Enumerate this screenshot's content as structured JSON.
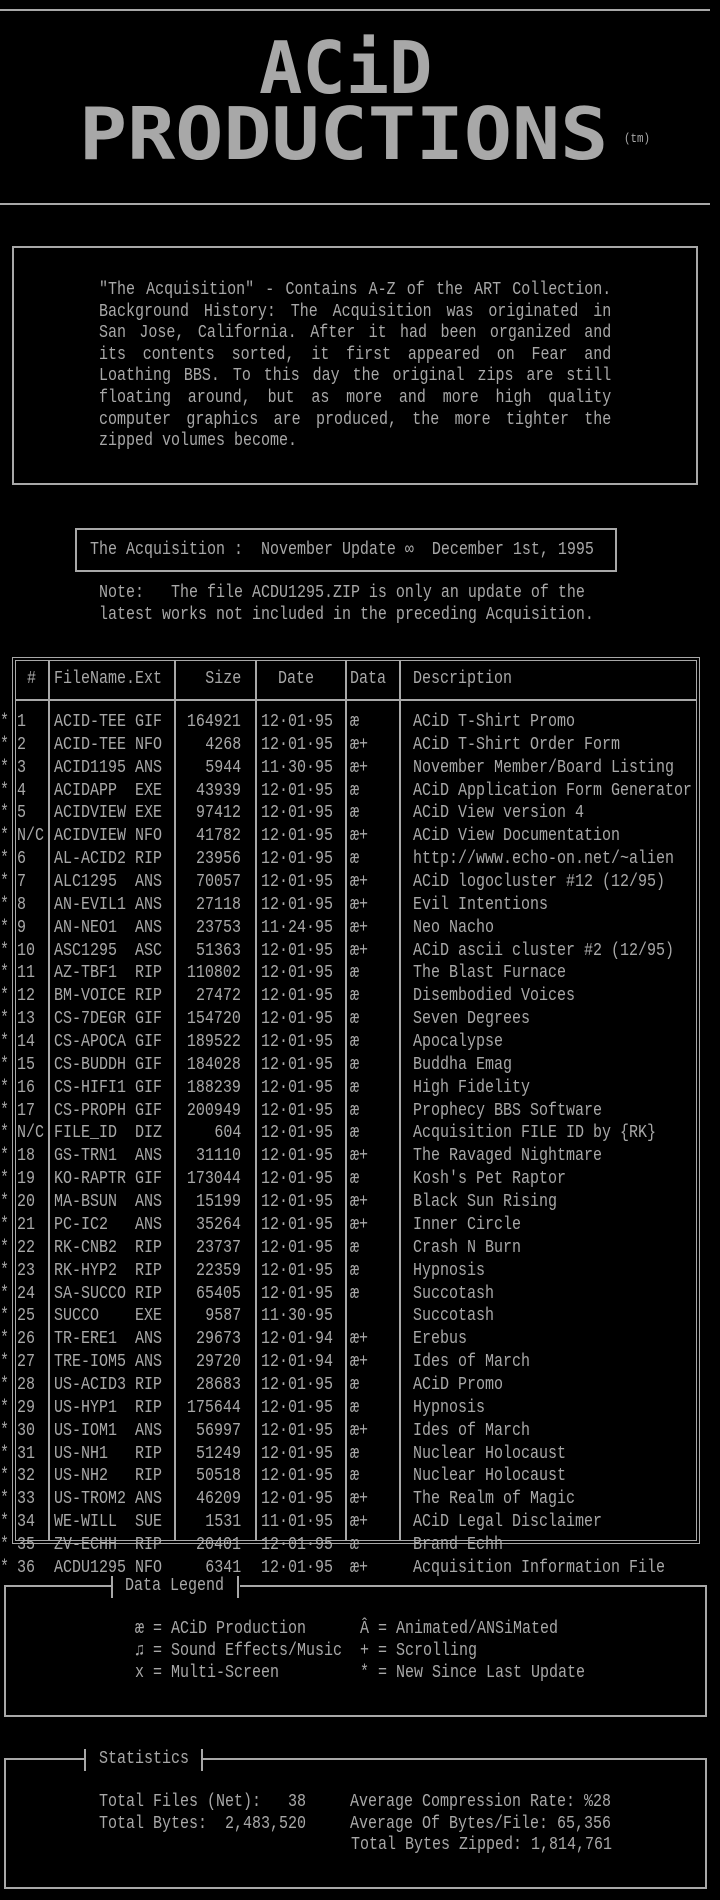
{
  "logo": {
    "line1": "ACiD",
    "line2": "PRODUCTIONS",
    "tm": "(tm)"
  },
  "intro": {
    "lines": [
      "\"The Acquisition\"  -  Contains A-Z of the ART Collection.",
      "Background History:  The Acquisition was originated in",
      "San Jose, California.  After it had been organized and",
      "its contents sorted, it first appeared on Fear and",
      "Loathing BBS.  To this day the original zips are still",
      "floating around, but as more and more high quality",
      "computer graphics are produced, the more tighter the",
      "zipped volumes become."
    ]
  },
  "update_banner": "The Acquisition :  November Update ∞  December 1st, 1995",
  "note": {
    "line1": "Note:   The file ACDU1295.ZIP is only an update of the",
    "line2": "latest works not included in the preceding Acquisition."
  },
  "table": {
    "headers": {
      "num": "#",
      "filename": "FileName.Ext",
      "size": "Size",
      "date": "Date",
      "data": "Data",
      "description": "Description"
    },
    "rows": [
      {
        "new": "*",
        "num": "1",
        "name": "ACID-TEE",
        "ext": "GIF",
        "size": "164921",
        "date": "12·01·95",
        "data": "æ",
        "desc": "ACiD T-Shirt Promo"
      },
      {
        "new": "*",
        "num": "2",
        "name": "ACID-TEE",
        "ext": "NFO",
        "size": "4268",
        "date": "12·01·95",
        "data": "æ+",
        "desc": "ACiD T-Shirt Order Form"
      },
      {
        "new": "*",
        "num": "3",
        "name": "ACID1195",
        "ext": "ANS",
        "size": "5944",
        "date": "11·30·95",
        "data": "æ+",
        "desc": "November Member/Board Listing"
      },
      {
        "new": "*",
        "num": "4",
        "name": "ACIDAPP",
        "ext": "EXE",
        "size": "43939",
        "date": "12·01·95",
        "data": "æ",
        "desc": "ACiD Application Form Generator"
      },
      {
        "new": "*",
        "num": "5",
        "name": "ACIDVIEW",
        "ext": "EXE",
        "size": "97412",
        "date": "12·01·95",
        "data": "æ",
        "desc": "ACiD View version 4"
      },
      {
        "new": "*",
        "num": "N/C",
        "name": "ACIDVIEW",
        "ext": "NFO",
        "size": "41782",
        "date": "12·01·95",
        "data": "æ+",
        "desc": "ACiD View Documentation"
      },
      {
        "new": "*",
        "num": "6",
        "name": "AL-ACID2",
        "ext": "RIP",
        "size": "23956",
        "date": "12·01·95",
        "data": "æ",
        "desc": "http://www.echo-on.net/~alien"
      },
      {
        "new": "*",
        "num": "7",
        "name": "ALC1295",
        "ext": "ANS",
        "size": "70057",
        "date": "12·01·95",
        "data": "æ+",
        "desc": "ACiD logocluster #12 (12/95)"
      },
      {
        "new": "*",
        "num": "8",
        "name": "AN-EVIL1",
        "ext": "ANS",
        "size": "27118",
        "date": "12·01·95",
        "data": "æ+",
        "desc": "Evil Intentions"
      },
      {
        "new": "*",
        "num": "9",
        "name": "AN-NEO1",
        "ext": "ANS",
        "size": "23753",
        "date": "11·24·95",
        "data": "æ+",
        "desc": "Neo Nacho"
      },
      {
        "new": "*",
        "num": "10",
        "name": "ASC1295",
        "ext": "ASC",
        "size": "51363",
        "date": "12·01·95",
        "data": "æ+",
        "desc": "ACiD ascii cluster #2 (12/95)"
      },
      {
        "new": "*",
        "num": "11",
        "name": "AZ-TBF1",
        "ext": "RIP",
        "size": "110802",
        "date": "12·01·95",
        "data": "æ",
        "desc": "The Blast Furnace"
      },
      {
        "new": "*",
        "num": "12",
        "name": "BM-VOICE",
        "ext": "RIP",
        "size": "27472",
        "date": "12·01·95",
        "data": "æ",
        "desc": "Disembodied Voices"
      },
      {
        "new": "*",
        "num": "13",
        "name": "CS-7DEGR",
        "ext": "GIF",
        "size": "154720",
        "date": "12·01·95",
        "data": "æ",
        "desc": "Seven Degrees"
      },
      {
        "new": "*",
        "num": "14",
        "name": "CS-APOCA",
        "ext": "GIF",
        "size": "189522",
        "date": "12·01·95",
        "data": "æ",
        "desc": "Apocalypse"
      },
      {
        "new": "*",
        "num": "15",
        "name": "CS-BUDDH",
        "ext": "GIF",
        "size": "184028",
        "date": "12·01·95",
        "data": "æ",
        "desc": "Buddha Emag"
      },
      {
        "new": "*",
        "num": "16",
        "name": "CS-HIFI1",
        "ext": "GIF",
        "size": "188239",
        "date": "12·01·95",
        "data": "æ",
        "desc": "High Fidelity"
      },
      {
        "new": "*",
        "num": "17",
        "name": "CS-PROPH",
        "ext": "GIF",
        "size": "200949",
        "date": "12·01·95",
        "data": "æ",
        "desc": "Prophecy BBS Software"
      },
      {
        "new": "*",
        "num": "N/C",
        "name": "FILE_ID",
        "ext": "DIZ",
        "size": "604",
        "date": "12·01·95",
        "data": "æ",
        "desc": "Acquisition FILE ID by {RK}"
      },
      {
        "new": "*",
        "num": "18",
        "name": "GS-TRN1",
        "ext": "ANS",
        "size": "31110",
        "date": "12·01·95",
        "data": "æ+",
        "desc": "The Ravaged Nightmare"
      },
      {
        "new": "*",
        "num": "19",
        "name": "KO-RAPTR",
        "ext": "GIF",
        "size": "173044",
        "date": "12·01·95",
        "data": "æ",
        "desc": "Kosh's Pet Raptor"
      },
      {
        "new": "*",
        "num": "20",
        "name": "MA-BSUN",
        "ext": "ANS",
        "size": "15199",
        "date": "12·01·95",
        "data": "æ+",
        "desc": "Black Sun Rising"
      },
      {
        "new": "*",
        "num": "21",
        "name": "PC-IC2",
        "ext": "ANS",
        "size": "35264",
        "date": "12·01·95",
        "data": "æ+",
        "desc": "Inner Circle"
      },
      {
        "new": "*",
        "num": "22",
        "name": "RK-CNB2",
        "ext": "RIP",
        "size": "23737",
        "date": "12·01·95",
        "data": "æ",
        "desc": "Crash N Burn"
      },
      {
        "new": "*",
        "num": "23",
        "name": "RK-HYP2",
        "ext": "RIP",
        "size": "22359",
        "date": "12·01·95",
        "data": "æ",
        "desc": "Hypnosis"
      },
      {
        "new": "*",
        "num": "24",
        "name": "SA-SUCCO",
        "ext": "RIP",
        "size": "65405",
        "date": "12·01·95",
        "data": "æ",
        "desc": "Succotash"
      },
      {
        "new": "*",
        "num": "25",
        "name": "SUCCO",
        "ext": "EXE",
        "size": "9587",
        "date": "11·30·95",
        "data": "",
        "desc": "Succotash"
      },
      {
        "new": "*",
        "num": "26",
        "name": "TR-ERE1",
        "ext": "ANS",
        "size": "29673",
        "date": "12·01·94",
        "data": "æ+",
        "desc": "Erebus"
      },
      {
        "new": "*",
        "num": "27",
        "name": "TRE-IOM5",
        "ext": "ANS",
        "size": "29720",
        "date": "12·01·94",
        "data": "æ+",
        "desc": "Ides of March"
      },
      {
        "new": "*",
        "num": "28",
        "name": "US-ACID3",
        "ext": "RIP",
        "size": "28683",
        "date": "12·01·95",
        "data": "æ",
        "desc": "ACiD Promo"
      },
      {
        "new": "*",
        "num": "29",
        "name": "US-HYP1",
        "ext": "RIP",
        "size": "175644",
        "date": "12·01·95",
        "data": "æ",
        "desc": "Hypnosis"
      },
      {
        "new": "*",
        "num": "30",
        "name": "US-IOM1",
        "ext": "ANS",
        "size": "56997",
        "date": "12·01·95",
        "data": "æ+",
        "desc": "Ides of March"
      },
      {
        "new": "*",
        "num": "31",
        "name": "US-NH1",
        "ext": "RIP",
        "size": "51249",
        "date": "12·01·95",
        "data": "æ",
        "desc": "Nuclear Holocaust"
      },
      {
        "new": "*",
        "num": "32",
        "name": "US-NH2",
        "ext": "RIP",
        "size": "50518",
        "date": "12·01·95",
        "data": "æ",
        "desc": "Nuclear Holocaust"
      },
      {
        "new": "*",
        "num": "33",
        "name": "US-TROM2",
        "ext": "ANS",
        "size": "46209",
        "date": "12·01·95",
        "data": "æ+",
        "desc": "The Realm of Magic"
      },
      {
        "new": "*",
        "num": "34",
        "name": "WE-WILL",
        "ext": "SUE",
        "size": "1531",
        "date": "11·01·95",
        "data": "æ+",
        "desc": "ACiD Legal Disclaimer"
      },
      {
        "new": "*",
        "num": "35",
        "name": "ZV-ECHH",
        "ext": "RIP",
        "size": "20401",
        "date": "12·01·95",
        "data": "æ",
        "desc": "Brand Echh"
      },
      {
        "new": "*",
        "num": "36",
        "name": "ACDU1295",
        "ext": "NFO",
        "size": "6341",
        "date": "12·01·95",
        "data": "æ+",
        "desc": "Acquisition Information File"
      }
    ]
  },
  "legend": {
    "title": "Data Legend",
    "items": [
      {
        "symbol": "æ",
        "text": "= ACiD Production"
      },
      {
        "symbol": "Â",
        "text": "= Animated/ANSiMated"
      },
      {
        "symbol": "♫",
        "text": "= Sound Effects/Music"
      },
      {
        "symbol": "+",
        "text": "= Scrolling"
      },
      {
        "symbol": "x",
        "text": "= Multi-Screen"
      },
      {
        "symbol": "*",
        "text": "= New Since Last Update"
      }
    ]
  },
  "statistics": {
    "title": "Statistics",
    "total_files": "Total Files (Net):   38",
    "total_bytes": "Total Bytes:  2,483,520",
    "avg_compression": "Average Compression Rate: %28",
    "avg_bytes_per_file": "Average Of Bytes/File: 65,356",
    "total_zipped": " Total Bytes Zipped: 1,814,761"
  },
  "colors": {
    "text": "#a8a8a8",
    "background": "#000000"
  }
}
